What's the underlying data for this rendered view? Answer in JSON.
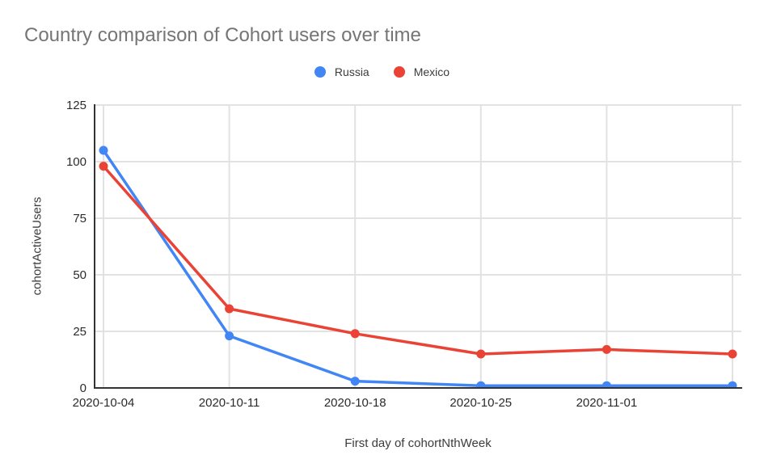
{
  "chart_data": {
    "type": "line",
    "title": "Country comparison of Cohort users over time",
    "xlabel": "First day of cohortNthWeek",
    "ylabel": "cohortActiveUsers",
    "x_tick_labels": [
      "2020-10-04",
      "2020-10-11",
      "2020-10-18",
      "2020-10-25",
      "2020-11-01"
    ],
    "num_points": 6,
    "series": [
      {
        "name": "Russia",
        "color": "#4285F4",
        "values": [
          105,
          23,
          3,
          1,
          1,
          1
        ]
      },
      {
        "name": "Mexico",
        "color": "#EA4335",
        "values": [
          98,
          35,
          24,
          15,
          17,
          15
        ]
      }
    ],
    "ylim": [
      0,
      125
    ],
    "yticks": [
      0,
      25,
      50,
      75,
      100,
      125
    ],
    "grid": true,
    "legend_position": "top-center",
    "background": "#ffffff",
    "colors": {
      "title_text": "#757575",
      "tick_text": "#2b2b2b",
      "axis_title_text": "#3c3c3c",
      "legend_text": "#3c3c3c",
      "grid_line": "#e2e2e2",
      "axis_line": "#333333"
    }
  }
}
